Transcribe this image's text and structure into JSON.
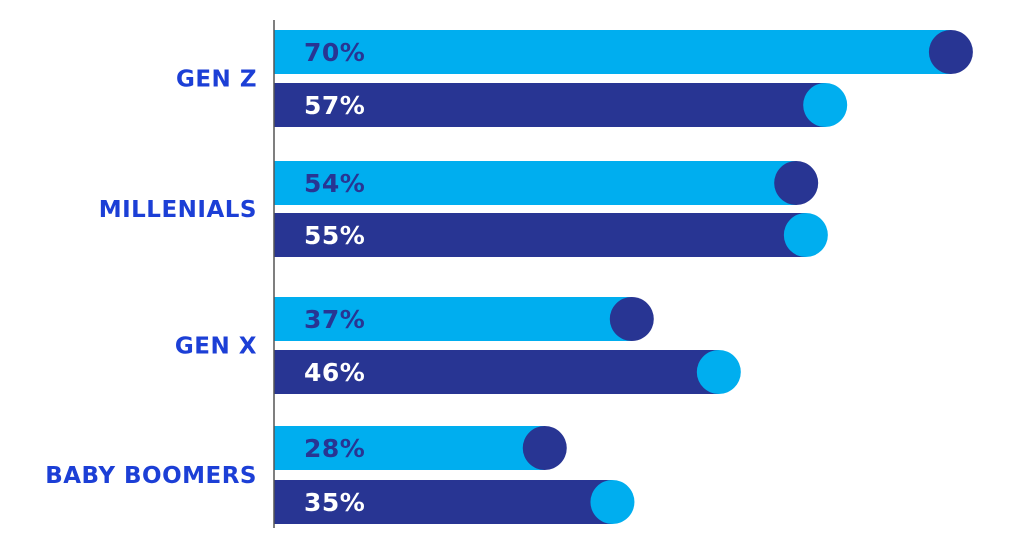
{
  "chart_data": {
    "type": "bar",
    "orientation": "horizontal",
    "title": "",
    "xlabel": "",
    "ylabel": "",
    "categories": [
      "GEN Z",
      "MILLENIALS",
      "GEN X",
      "BABY BOOMERS"
    ],
    "series": [
      {
        "values": [
          70,
          54,
          37,
          28
        ],
        "labels": [
          "70%",
          "54%",
          "37%",
          "28%"
        ]
      },
      {
        "values": [
          57,
          55,
          46,
          35
        ],
        "labels": [
          "57%",
          "55%",
          "46%",
          "35%"
        ]
      }
    ],
    "xlim": [
      0,
      100
    ],
    "grid": false,
    "legend": "none"
  },
  "colors": {
    "category_label": "#1c3fd6",
    "series_light": "#00aeef",
    "series_dark": "#283593",
    "axis": "#555555",
    "value_label_on_light": "#283593",
    "value_label_on_dark": "#ffffff"
  }
}
